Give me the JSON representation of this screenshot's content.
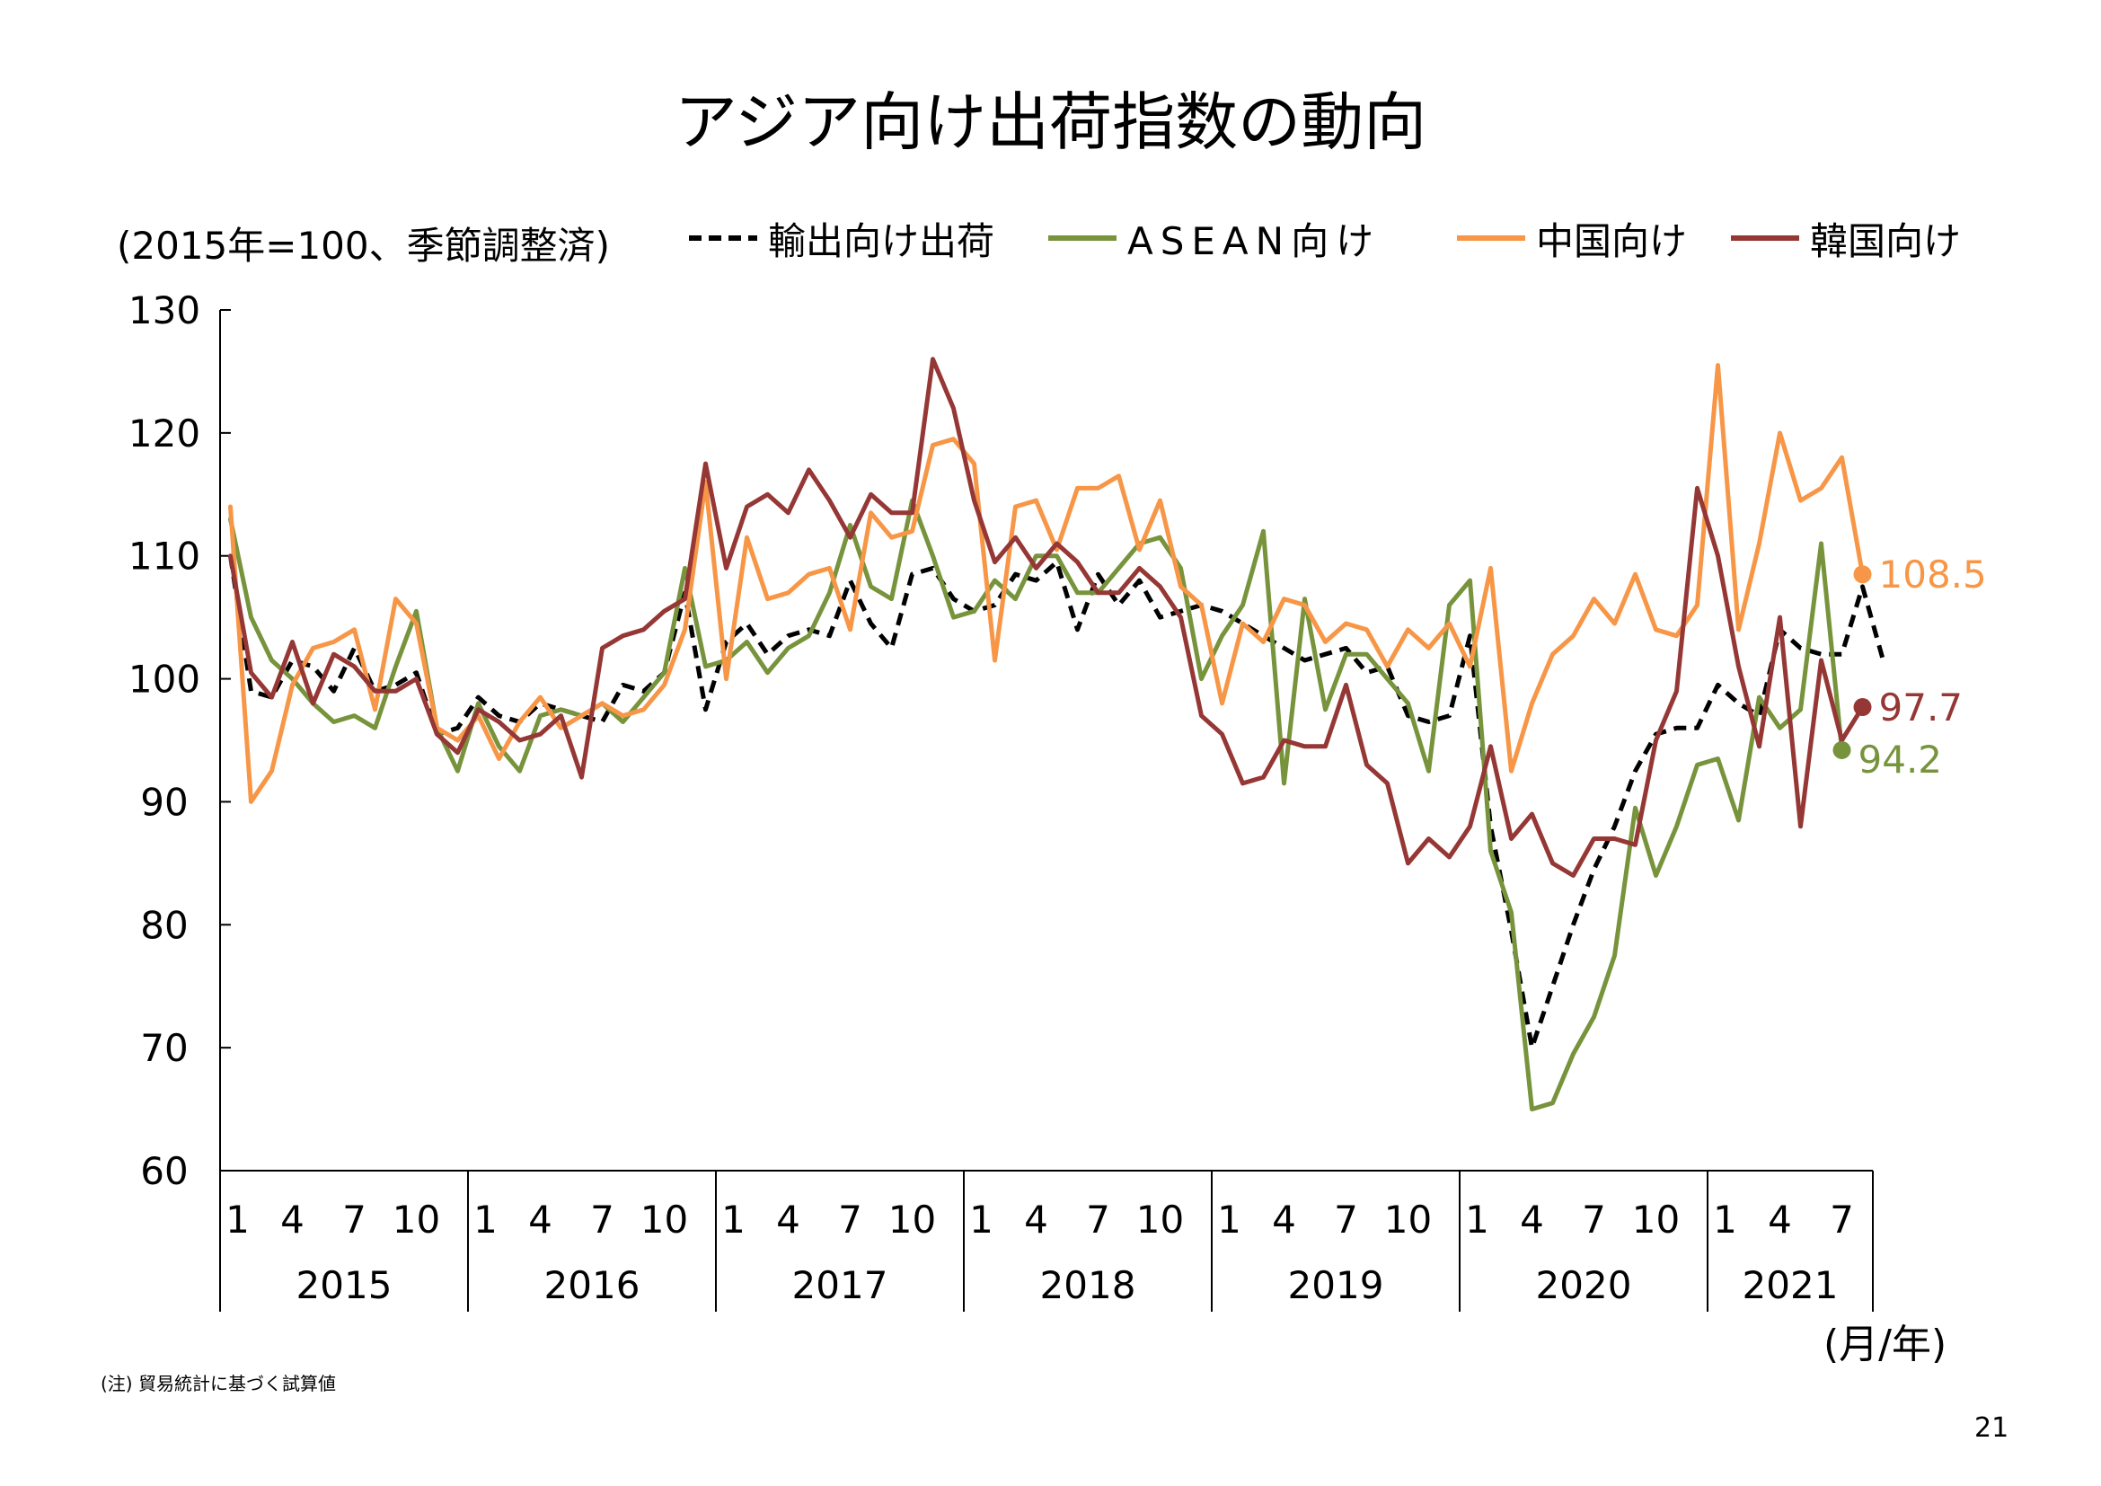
{
  "title": "アジア向け出荷指数の動向",
  "unit_label": "(2015年=100、季節調整済)",
  "axis_unit": "(月/年)",
  "note": "(注) 貿易統計に基づく試算値",
  "page_number": "21",
  "colors": {
    "exports": "#000000",
    "asean": "#77933C",
    "china": "#F79646",
    "korea": "#953735"
  },
  "chart_data": {
    "type": "line",
    "title": "アジア向け出荷指数の動向",
    "ylabel": "(2015年=100、季節調整済)",
    "xlabel": "(月/年)",
    "ylim": [
      60,
      130
    ],
    "yticks": [
      60,
      70,
      80,
      90,
      100,
      110,
      120,
      130
    ],
    "x_month_ticks": [
      "1",
      "4",
      "7",
      "10"
    ],
    "years": [
      "2015",
      "2016",
      "2017",
      "2018",
      "2019",
      "2020",
      "2021"
    ],
    "legend": [
      "輸出向け出荷",
      "ASEAN向け",
      "中国向け",
      "韓国向け"
    ],
    "series": [
      {
        "name": "輸出向け出荷",
        "style": "dashed",
        "color": "#000000",
        "values": [
          110.0,
          99.0,
          98.5,
          101.5,
          101.0,
          99.0,
          102.5,
          99.0,
          99.5,
          100.5,
          95.5,
          96.0,
          98.5,
          97.0,
          96.5,
          98.0,
          97.5,
          97.0,
          96.5,
          99.5,
          99.0,
          100.5,
          107.0,
          97.5,
          103.0,
          104.5,
          102.0,
          103.5,
          104.0,
          103.5,
          108.0,
          104.5,
          102.5,
          108.5,
          109.0,
          106.5,
          105.5,
          106.0,
          108.5,
          108.0,
          109.5,
          104.0,
          108.5,
          106.0,
          108.0,
          105.0,
          105.5,
          106.0,
          105.5,
          104.5,
          103.5,
          102.5,
          101.5,
          102.0,
          102.5,
          100.5,
          101.0,
          97.0,
          96.5,
          97.0,
          103.5,
          88.0,
          79.5,
          70.0,
          75.0,
          80.0,
          84.5,
          88.0,
          92.5,
          95.5,
          96.0,
          96.0,
          99.5,
          98.0,
          97.0,
          104.0,
          102.5,
          102.0,
          102.0,
          107.5,
          101.5
        ]
      },
      {
        "name": "ASEAN向け",
        "style": "solid",
        "color": "#77933C",
        "values": [
          113.0,
          105.0,
          101.5,
          100.0,
          98.0,
          96.5,
          97.0,
          96.0,
          101.0,
          105.5,
          96.0,
          92.5,
          98.0,
          94.5,
          92.5,
          97.0,
          97.5,
          97.0,
          98.0,
          96.5,
          98.5,
          100.5,
          109.0,
          101.0,
          101.5,
          103.0,
          100.5,
          102.5,
          103.5,
          107.0,
          112.5,
          107.5,
          106.5,
          114.5,
          110.0,
          105.0,
          105.5,
          108.0,
          106.5,
          110.0,
          110.0,
          107.0,
          107.0,
          109.0,
          111.0,
          111.5,
          109.0,
          100.0,
          103.5,
          106.0,
          112.0,
          91.5,
          106.5,
          97.5,
          102.0,
          102.0,
          100.0,
          98.0,
          92.5,
          106.0,
          108.0,
          86.0,
          81.0,
          65.0,
          65.5,
          69.5,
          72.5,
          77.5,
          89.5,
          84.0,
          88.0,
          93.0,
          93.5,
          88.5,
          98.5,
          96.0,
          97.5,
          111.0,
          94.2
        ]
      },
      {
        "name": "中国向け",
        "style": "solid",
        "color": "#F79646",
        "values": [
          114.0,
          90.0,
          92.5,
          99.5,
          102.5,
          103.0,
          104.0,
          97.5,
          106.5,
          104.5,
          96.0,
          95.0,
          97.0,
          93.5,
          96.5,
          98.5,
          96.0,
          97.0,
          98.0,
          97.0,
          97.5,
          99.5,
          104.0,
          116.0,
          100.0,
          111.5,
          106.5,
          107.0,
          108.5,
          109.0,
          104.0,
          113.5,
          111.5,
          112.0,
          119.0,
          119.5,
          117.5,
          101.5,
          114.0,
          114.5,
          110.5,
          115.5,
          115.5,
          116.5,
          110.5,
          114.5,
          107.5,
          106.0,
          98.0,
          104.5,
          103.0,
          106.5,
          106.0,
          103.0,
          104.5,
          104.0,
          101.0,
          104.0,
          102.5,
          104.5,
          101.0,
          109.0,
          92.5,
          98.0,
          102.0,
          103.5,
          106.5,
          104.5,
          108.5,
          104.0,
          103.5,
          106.0,
          125.5,
          104.0,
          111.0,
          120.0,
          114.5,
          115.5,
          118.0,
          108.5
        ]
      },
      {
        "name": "韓国向け",
        "style": "solid",
        "color": "#953735",
        "values": [
          110.0,
          100.5,
          98.5,
          103.0,
          98.0,
          102.0,
          101.0,
          99.0,
          99.0,
          100.0,
          95.5,
          94.0,
          97.5,
          96.5,
          95.0,
          95.5,
          97.0,
          92.0,
          102.5,
          103.5,
          104.0,
          105.5,
          106.5,
          117.5,
          109.0,
          114.0,
          115.0,
          113.5,
          117.0,
          114.5,
          111.5,
          115.0,
          113.5,
          113.5,
          126.0,
          122.0,
          114.5,
          109.5,
          111.5,
          109.0,
          111.0,
          109.5,
          107.0,
          107.0,
          109.0,
          107.5,
          105.0,
          97.0,
          95.5,
          91.5,
          92.0,
          95.0,
          94.5,
          94.5,
          99.5,
          93.0,
          91.5,
          85.0,
          87.0,
          85.5,
          88.0,
          94.5,
          87.0,
          89.0,
          85.0,
          84.0,
          87.0,
          87.0,
          86.5,
          95.0,
          99.0,
          115.5,
          110.0,
          101.0,
          94.5,
          105.0,
          88.0,
          101.5,
          95.0,
          97.7
        ]
      }
    ],
    "end_labels": [
      {
        "series": "中国向け",
        "value": 108.5,
        "label": "108.5"
      },
      {
        "series": "韓国向け",
        "value": 97.7,
        "label": "97.7"
      },
      {
        "series": "ASEAN向け",
        "value": 94.2,
        "label": "94.2"
      }
    ]
  }
}
